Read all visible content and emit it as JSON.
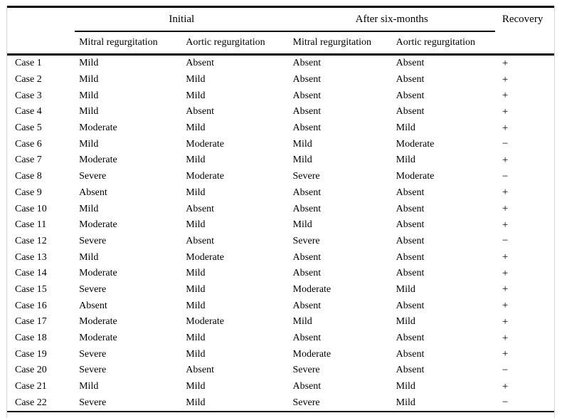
{
  "table": {
    "header": {
      "group_initial": "Initial",
      "group_after": "After six-months",
      "col_recovery": "Recovery",
      "sub_cols": [
        "Mitral regurgitation",
        "Aortic regurgitation",
        "Mitral regurgitation",
        "Aortic regurgitation"
      ]
    },
    "rows": [
      {
        "case": "Case 1",
        "initial_mitral": "Mild",
        "initial_aortic": "Absent",
        "after_mitral": "Absent",
        "after_aortic": "Absent",
        "recovery": "+"
      },
      {
        "case": "Case 2",
        "initial_mitral": "Mild",
        "initial_aortic": "Mild",
        "after_mitral": "Absent",
        "after_aortic": "Absent",
        "recovery": "+"
      },
      {
        "case": "Case 3",
        "initial_mitral": "Mild",
        "initial_aortic": "Mild",
        "after_mitral": "Absent",
        "after_aortic": "Absent",
        "recovery": "+"
      },
      {
        "case": "Case 4",
        "initial_mitral": "Mild",
        "initial_aortic": "Absent",
        "after_mitral": "Absent",
        "after_aortic": "Absent",
        "recovery": "+"
      },
      {
        "case": "Case 5",
        "initial_mitral": "Moderate",
        "initial_aortic": "Mild",
        "after_mitral": "Absent",
        "after_aortic": "Mild",
        "recovery": "+"
      },
      {
        "case": "Case 6",
        "initial_mitral": "Mild",
        "initial_aortic": "Moderate",
        "after_mitral": "Mild",
        "after_aortic": "Moderate",
        "recovery": "−"
      },
      {
        "case": "Case 7",
        "initial_mitral": "Moderate",
        "initial_aortic": "Mild",
        "after_mitral": "Mild",
        "after_aortic": "Mild",
        "recovery": "+"
      },
      {
        "case": "Case 8",
        "initial_mitral": "Severe",
        "initial_aortic": "Moderate",
        "after_mitral": "Severe",
        "after_aortic": "Moderate",
        "recovery": "−"
      },
      {
        "case": "Case 9",
        "initial_mitral": "Absent",
        "initial_aortic": "Mild",
        "after_mitral": "Absent",
        "after_aortic": "Absent",
        "recovery": "+"
      },
      {
        "case": "Case 10",
        "initial_mitral": "Mild",
        "initial_aortic": "Absent",
        "after_mitral": "Absent",
        "after_aortic": "Absent",
        "recovery": "+"
      },
      {
        "case": "Case 11",
        "initial_mitral": "Moderate",
        "initial_aortic": "Mild",
        "after_mitral": "Mild",
        "after_aortic": "Absent",
        "recovery": "+"
      },
      {
        "case": "Case 12",
        "initial_mitral": "Severe",
        "initial_aortic": "Absent",
        "after_mitral": "Severe",
        "after_aortic": "Absent",
        "recovery": "−"
      },
      {
        "case": "Case 13",
        "initial_mitral": "Mild",
        "initial_aortic": "Moderate",
        "after_mitral": "Absent",
        "after_aortic": "Absent",
        "recovery": "+"
      },
      {
        "case": "Case 14",
        "initial_mitral": "Moderate",
        "initial_aortic": "Mild",
        "after_mitral": "Absent",
        "after_aortic": "Absent",
        "recovery": "+"
      },
      {
        "case": "Case 15",
        "initial_mitral": "Severe",
        "initial_aortic": "Mild",
        "after_mitral": "Moderate",
        "after_aortic": "Mild",
        "recovery": "+"
      },
      {
        "case": "Case 16",
        "initial_mitral": "Absent",
        "initial_aortic": "Mild",
        "after_mitral": "Absent",
        "after_aortic": "Absent",
        "recovery": "+"
      },
      {
        "case": "Case 17",
        "initial_mitral": "Moderate",
        "initial_aortic": "Moderate",
        "after_mitral": "Mild",
        "after_aortic": "Mild",
        "recovery": "+"
      },
      {
        "case": "Case 18",
        "initial_mitral": "Moderate",
        "initial_aortic": "Mild",
        "after_mitral": "Absent",
        "after_aortic": "Absent",
        "recovery": "+"
      },
      {
        "case": "Case 19",
        "initial_mitral": "Severe",
        "initial_aortic": "Mild",
        "after_mitral": "Moderate",
        "after_aortic": "Absent",
        "recovery": "+"
      },
      {
        "case": "Case 20",
        "initial_mitral": "Severe",
        "initial_aortic": "Absent",
        "after_mitral": "Severe",
        "after_aortic": "Absent",
        "recovery": "−"
      },
      {
        "case": "Case 21",
        "initial_mitral": "Mild",
        "initial_aortic": "Mild",
        "after_mitral": "Absent",
        "after_aortic": "Mild",
        "recovery": "+"
      },
      {
        "case": "Case 22",
        "initial_mitral": "Severe",
        "initial_aortic": "Mild",
        "after_mitral": "Severe",
        "after_aortic": "Mild",
        "recovery": "−"
      }
    ],
    "colors": {
      "text": "#000000",
      "rule": "#000000",
      "frame": "#d6d6d6",
      "background": "#ffffff"
    }
  }
}
